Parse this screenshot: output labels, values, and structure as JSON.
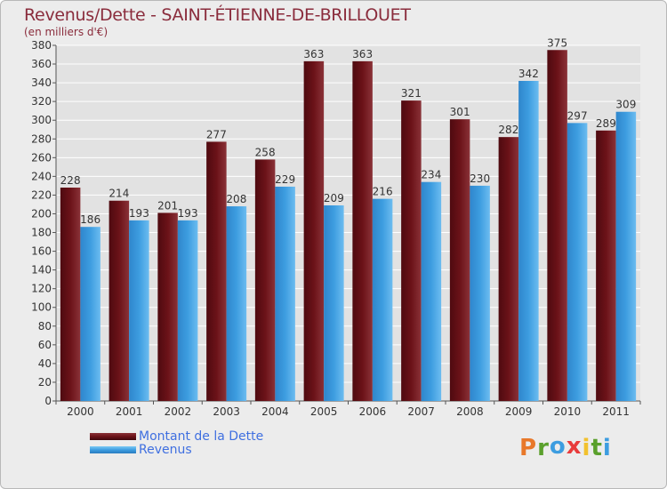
{
  "title": "Revenus/Dette - SAINT-ÉTIENNE-DE-BRILLOUET",
  "subtitle": "(en milliers d'€)",
  "colors": {
    "dette": "#6b1218",
    "revenus": "#3d9de0",
    "axis_text": "#333333",
    "grid": "#ffffff",
    "title": "#8a2c3c",
    "legend_text": "#3f6fe0"
  },
  "logo": {
    "letters": [
      "P",
      "r",
      "o",
      "x",
      "i",
      "t",
      "i"
    ],
    "colors": [
      "#e8782a",
      "#5aa02c",
      "#3d9de0",
      "#e83c3c",
      "#f2c12e",
      "#5aa02c",
      "#3d9de0"
    ]
  },
  "chart_data": {
    "type": "bar",
    "categories": [
      "2000",
      "2001",
      "2002",
      "2003",
      "2004",
      "2005",
      "2006",
      "2007",
      "2008",
      "2009",
      "2010",
      "2011"
    ],
    "series": [
      {
        "name": "Montant de la Dette",
        "values": [
          228,
          214,
          201,
          277,
          258,
          363,
          363,
          321,
          301,
          282,
          375,
          289
        ]
      },
      {
        "name": "Revenus",
        "values": [
          186,
          193,
          193,
          208,
          229,
          209,
          216,
          234,
          230,
          342,
          297,
          309
        ]
      }
    ],
    "ylim": [
      0,
      380
    ],
    "ytick_step": 20,
    "grid": true,
    "legend_position": "bottom-left"
  }
}
